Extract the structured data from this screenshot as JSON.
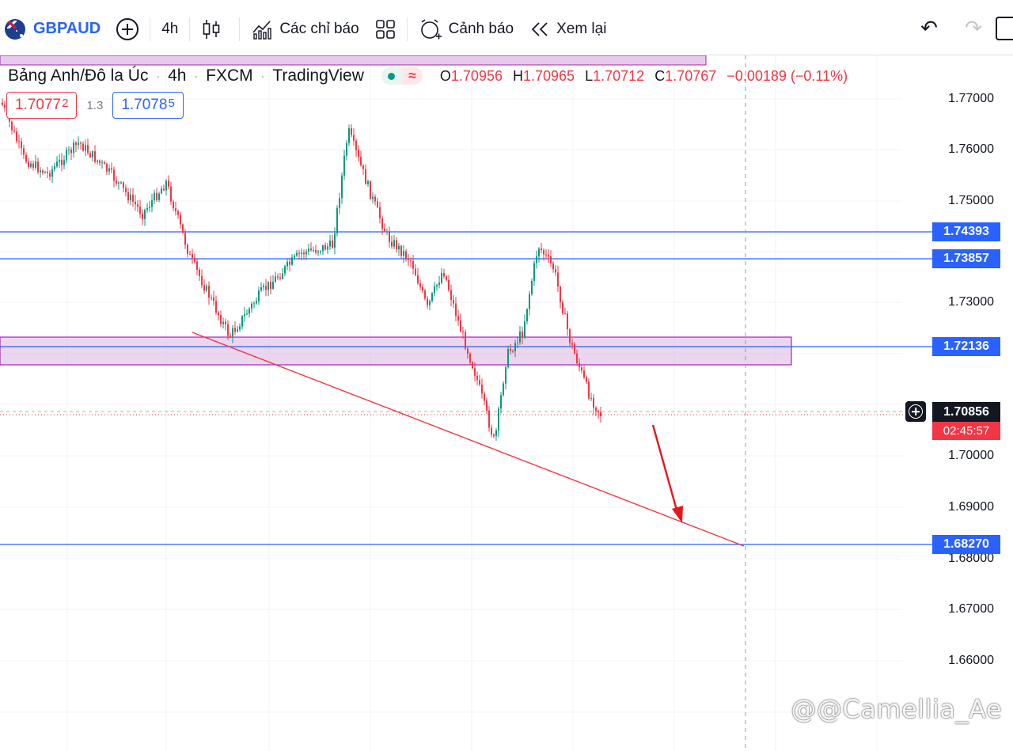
{
  "toolbar": {
    "symbol": "GBPAUD",
    "interval": "4h",
    "indicators_label": "Các chỉ báo",
    "alert_label": "Cảnh báo",
    "replay_label": "Xem lại"
  },
  "legend": {
    "title": "Bảng Anh/Đô la Úc",
    "interval": "4h",
    "exchange": "FXCM",
    "source": "TradingView",
    "open_key": "O",
    "open": "1.70956",
    "high_key": "H",
    "high": "1.70965",
    "low_key": "L",
    "low": "1.70712",
    "close_key": "C",
    "close": "1.70767",
    "change": "−0.00189 (−0.11%)"
  },
  "order_panel": {
    "sell_main": "1.7077",
    "sell_sup": "2",
    "spread": "1.3",
    "buy_main": "1.7078",
    "buy_sup": "5"
  },
  "price_scale": {
    "ticks": [
      "1.77000",
      "1.76000",
      "1.75000",
      "1.73000",
      "1.70000",
      "1.69000",
      "1.68000",
      "1.67000",
      "1.66000"
    ]
  },
  "levels": {
    "l1": "1.74393",
    "l2": "1.73857",
    "l3": "1.72136",
    "l4": "1.68270"
  },
  "last_price": {
    "price": "1.70856",
    "countdown": "02:45:57"
  },
  "watermark": "@@Camellia_Ae",
  "colors": {
    "up": "#089981",
    "down": "#f23645",
    "level_line": "#2962ff",
    "zone_fill": "#e1bee7",
    "trendline": "#f23645"
  }
}
